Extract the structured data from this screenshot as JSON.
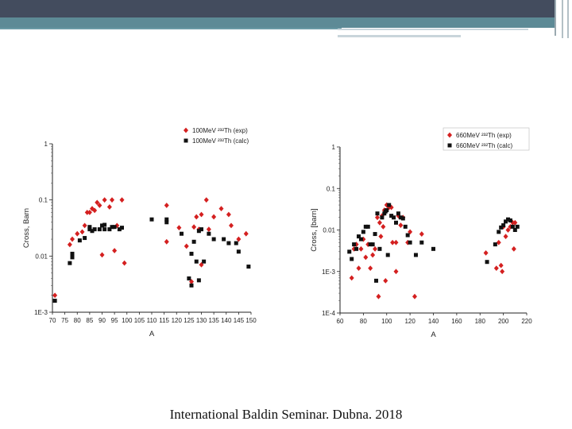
{
  "footer": {
    "caption": "International Baldin Seminar. Dubna. 2018"
  },
  "colors": {
    "exp": "#d42020",
    "calc": "#111111",
    "header_dark": "#434c5e",
    "header_teal": "#5d8a96"
  },
  "chart_data": [
    {
      "type": "scatter",
      "xlabel": "A",
      "ylabel": "Cross, Barn",
      "xlim": [
        70,
        150
      ],
      "x_ticks": [
        70,
        75,
        80,
        85,
        90,
        95,
        100,
        105,
        110,
        115,
        120,
        125,
        130,
        135,
        140,
        145,
        150
      ],
      "ylim": [
        0.001,
        1
      ],
      "y_scale": "log",
      "y_ticks": [
        0.001,
        0.01,
        0.1,
        1
      ],
      "y_tick_labels": [
        "1E-3",
        "0.01",
        "0.1",
        "1"
      ],
      "legend_position": "top-right",
      "series": [
        {
          "name": "100MeV ²³²Th (exp)",
          "marker": "diamond",
          "color": "#d42020",
          "points": [
            [
              71,
              0.002
            ],
            [
              77,
              0.016
            ],
            [
              78,
              0.02
            ],
            [
              80,
              0.025
            ],
            [
              82,
              0.027
            ],
            [
              83,
              0.035
            ],
            [
              84,
              0.06
            ],
            [
              85,
              0.06
            ],
            [
              86,
              0.07
            ],
            [
              87,
              0.065
            ],
            [
              88,
              0.09
            ],
            [
              89,
              0.08
            ],
            [
              90,
              0.0105
            ],
            [
              91,
              0.1
            ],
            [
              93,
              0.075
            ],
            [
              94,
              0.1
            ],
            [
              95,
              0.0125
            ],
            [
              96,
              0.035
            ],
            [
              98,
              0.1
            ],
            [
              99,
              0.0075
            ],
            [
              116,
              0.08
            ],
            [
              116,
              0.018
            ],
            [
              121,
              0.032
            ],
            [
              124,
              0.015
            ],
            [
              126,
              0.0035
            ],
            [
              127,
              0.033
            ],
            [
              128,
              0.05
            ],
            [
              129,
              0.03
            ],
            [
              130,
              0.055
            ],
            [
              130,
              0.007
            ],
            [
              132,
              0.1
            ],
            [
              133,
              0.03
            ],
            [
              135,
              0.05
            ],
            [
              138,
              0.07
            ],
            [
              141,
              0.055
            ],
            [
              142,
              0.035
            ],
            [
              145,
              0.02
            ],
            [
              148,
              0.025
            ]
          ]
        },
        {
          "name": "100MeV ²³²Th (calc)",
          "marker": "square",
          "color": "#111111",
          "points": [
            [
              71,
              0.0016
            ],
            [
              77,
              0.0075
            ],
            [
              78,
              0.0095
            ],
            [
              78,
              0.011
            ],
            [
              81,
              0.019
            ],
            [
              83,
              0.021
            ],
            [
              85,
              0.03
            ],
            [
              85,
              0.033
            ],
            [
              86,
              0.028
            ],
            [
              87,
              0.03
            ],
            [
              89,
              0.03
            ],
            [
              90,
              0.035
            ],
            [
              91,
              0.036
            ],
            [
              91,
              0.03
            ],
            [
              93,
              0.03
            ],
            [
              94,
              0.033
            ],
            [
              95,
              0.033
            ],
            [
              97,
              0.03
            ],
            [
              98,
              0.032
            ],
            [
              110,
              0.045
            ],
            [
              116,
              0.04
            ],
            [
              116,
              0.045
            ],
            [
              122,
              0.025
            ],
            [
              125,
              0.004
            ],
            [
              126,
              0.011
            ],
            [
              126,
              0.003
            ],
            [
              127,
              0.018
            ],
            [
              128,
              0.008
            ],
            [
              129,
              0.0037
            ],
            [
              129,
              0.028
            ],
            [
              130,
              0.03
            ],
            [
              131,
              0.008
            ],
            [
              133,
              0.025
            ],
            [
              135,
              0.02
            ],
            [
              139,
              0.02
            ],
            [
              141,
              0.017
            ],
            [
              144,
              0.017
            ],
            [
              145,
              0.012
            ],
            [
              149,
              0.0065
            ]
          ]
        }
      ]
    },
    {
      "type": "scatter",
      "xlabel": "A",
      "ylabel": "Cross, [barn]",
      "xlim": [
        60,
        220
      ],
      "x_ticks": [
        60,
        80,
        100,
        120,
        140,
        160,
        180,
        200,
        220
      ],
      "ylim": [
        0.0001,
        1
      ],
      "y_scale": "log",
      "y_ticks": [
        0.0001,
        0.001,
        0.01,
        0.1,
        1
      ],
      "y_tick_labels": [
        "1E-4",
        "1E-3",
        "0.01",
        "0.1",
        "1"
      ],
      "legend_position": "top-right",
      "series": [
        {
          "name": "660MeV ²³²Th (exp)",
          "marker": "diamond",
          "color": "#d42020",
          "points": [
            [
              70,
              0.0007
            ],
            [
              72,
              0.0035
            ],
            [
              74,
              0.0045
            ],
            [
              76,
              0.0012
            ],
            [
              78,
              0.0035
            ],
            [
              80,
              0.006
            ],
            [
              82,
              0.0022
            ],
            [
              84,
              0.0045
            ],
            [
              86,
              0.0012
            ],
            [
              88,
              0.0025
            ],
            [
              90,
              0.0035
            ],
            [
              92,
              0.02
            ],
            [
              93,
              0.00025
            ],
            [
              94,
              0.015
            ],
            [
              95,
              0.007
            ],
            [
              96,
              0.022
            ],
            [
              97,
              0.012
            ],
            [
              98,
              0.03
            ],
            [
              99,
              0.0006
            ],
            [
              100,
              0.04
            ],
            [
              102,
              0.035
            ],
            [
              104,
              0.035
            ],
            [
              105,
              0.005
            ],
            [
              108,
              0.005
            ],
            [
              108,
              0.001
            ],
            [
              110,
              0.022
            ],
            [
              112,
              0.013
            ],
            [
              114,
              0.02
            ],
            [
              118,
              0.005
            ],
            [
              120,
              0.009
            ],
            [
              124,
              0.00025
            ],
            [
              130,
              0.008
            ],
            [
              185,
              0.0028
            ],
            [
              194,
              0.0012
            ],
            [
              196,
              0.005
            ],
            [
              198,
              0.0014
            ],
            [
              199,
              0.001
            ],
            [
              200,
              0.012
            ],
            [
              202,
              0.007
            ],
            [
              204,
              0.01
            ],
            [
              206,
              0.012
            ],
            [
              208,
              0.015
            ],
            [
              209,
              0.0035
            ],
            [
              210,
              0.015
            ]
          ]
        },
        {
          "name": "660MeV ²³²Th (calc)",
          "marker": "square",
          "color": "#111111",
          "points": [
            [
              68,
              0.003
            ],
            [
              70,
              0.002
            ],
            [
              72,
              0.0045
            ],
            [
              74,
              0.0035
            ],
            [
              76,
              0.007
            ],
            [
              78,
              0.006
            ],
            [
              80,
              0.009
            ],
            [
              82,
              0.012
            ],
            [
              84,
              0.012
            ],
            [
              86,
              0.0045
            ],
            [
              88,
              0.0045
            ],
            [
              90,
              0.008
            ],
            [
              91,
              0.0006
            ],
            [
              92,
              0.025
            ],
            [
              94,
              0.0035
            ],
            [
              96,
              0.02
            ],
            [
              98,
              0.025
            ],
            [
              99,
              0.028
            ],
            [
              100,
              0.03
            ],
            [
              101,
              0.0025
            ],
            [
              102,
              0.04
            ],
            [
              104,
              0.022
            ],
            [
              106,
              0.02
            ],
            [
              108,
              0.015
            ],
            [
              110,
              0.025
            ],
            [
              112,
              0.02
            ],
            [
              114,
              0.019
            ],
            [
              116,
              0.012
            ],
            [
              118,
              0.0075
            ],
            [
              120,
              0.005
            ],
            [
              125,
              0.0025
            ],
            [
              130,
              0.005
            ],
            [
              140,
              0.0035
            ],
            [
              186,
              0.0017
            ],
            [
              193,
              0.0045
            ],
            [
              196,
              0.009
            ],
            [
              198,
              0.0115
            ],
            [
              200,
              0.013
            ],
            [
              202,
              0.016
            ],
            [
              204,
              0.018
            ],
            [
              206,
              0.017
            ],
            [
              208,
              0.012
            ],
            [
              210,
              0.01
            ],
            [
              212,
              0.012
            ]
          ]
        }
      ]
    }
  ]
}
